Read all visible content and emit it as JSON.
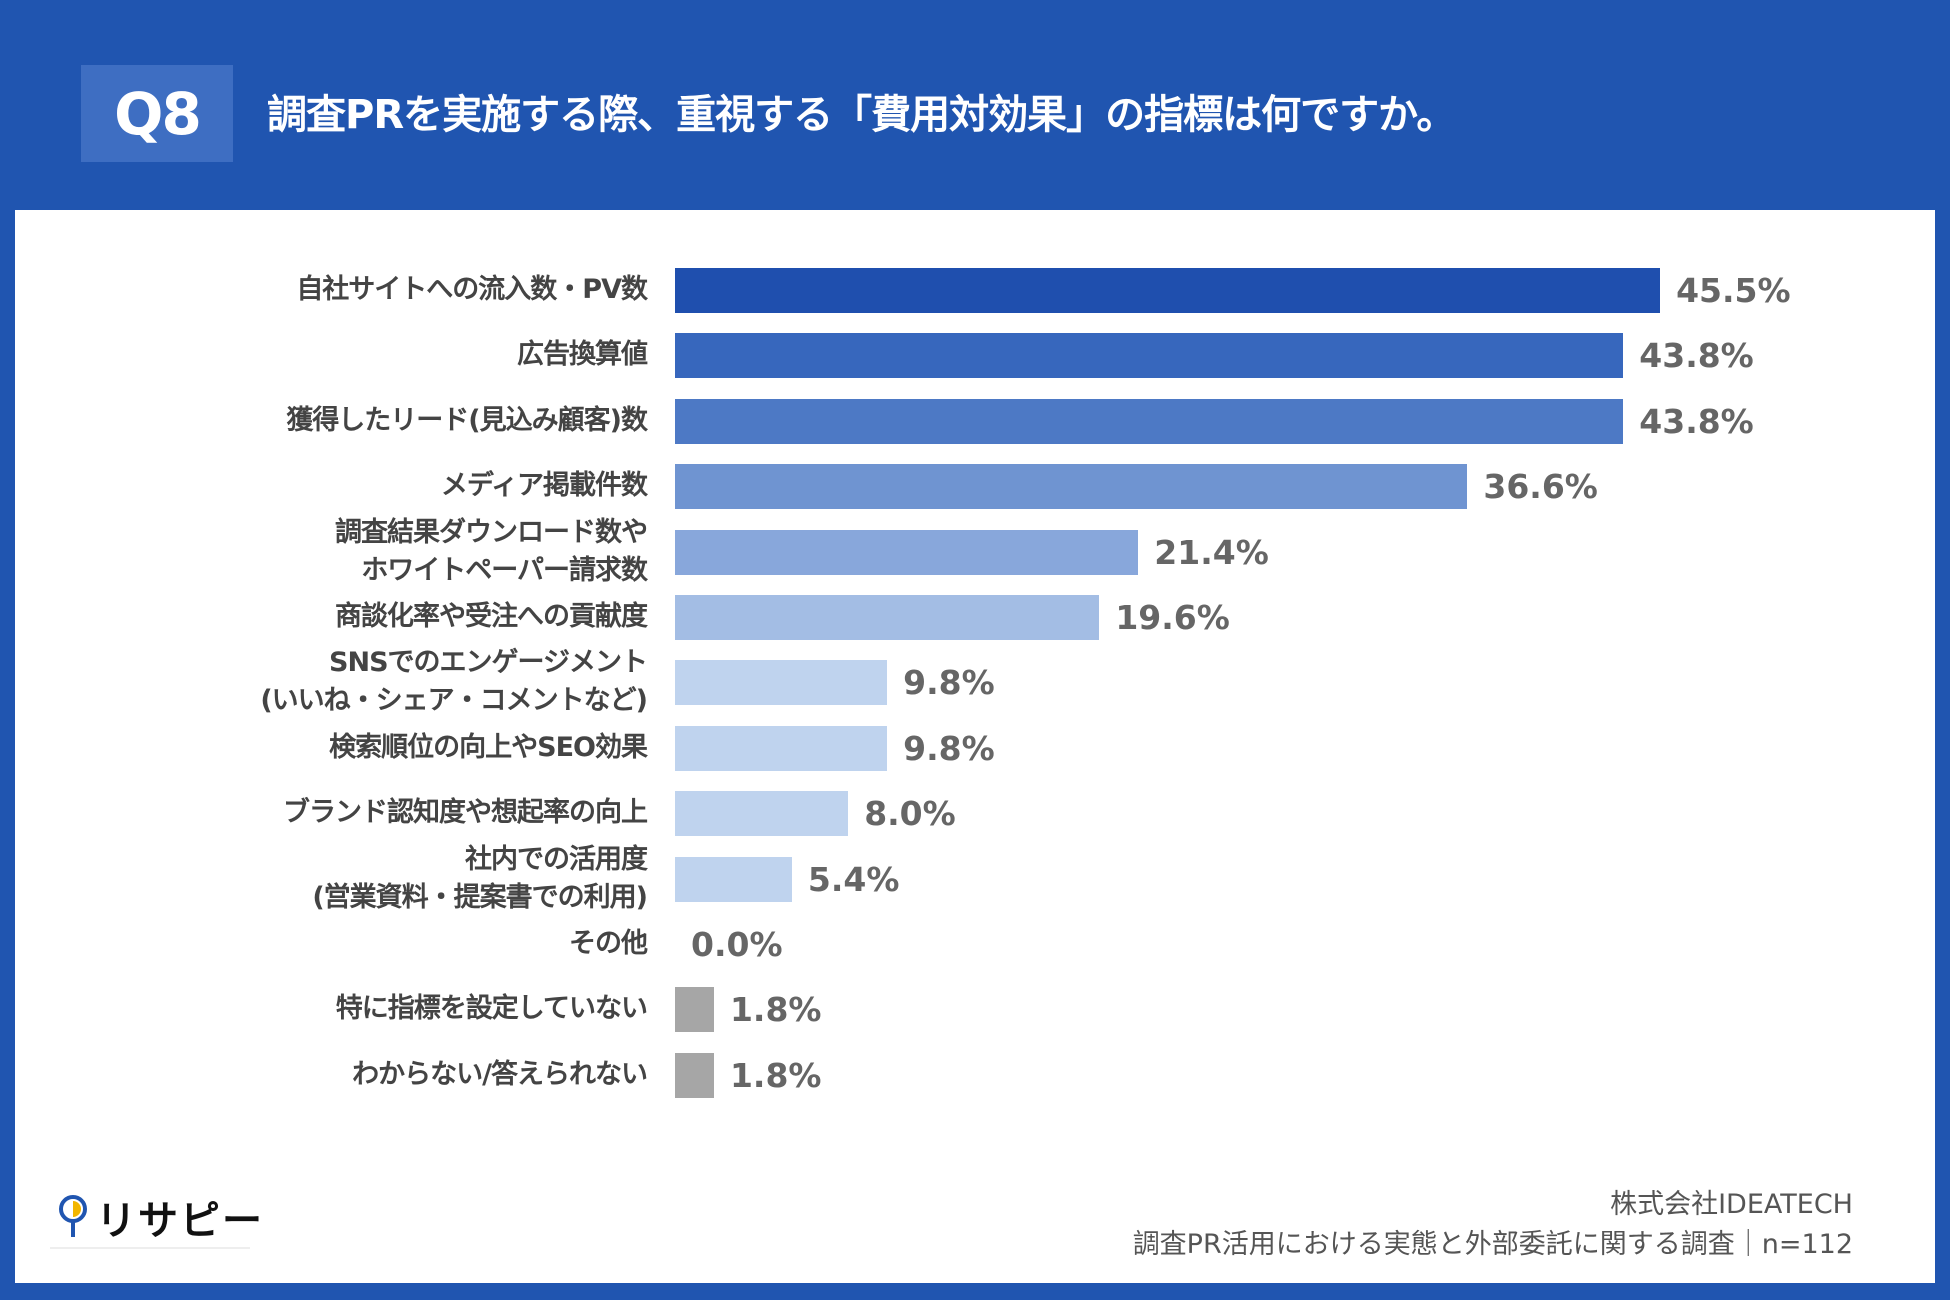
{
  "header": {
    "badge": "Q8",
    "title": "調査PRを実施する際、重視する「費用対効果」の指標は何ですか。"
  },
  "chart_data": {
    "type": "bar",
    "orientation": "horizontal",
    "categories": [
      "自社サイトへの流入数・PV数",
      "広告換算値",
      "獲得したリード(見込み顧客)数",
      "メディア掲載件数",
      "調査結果ダウンロード数や\nホワイトペーパー請求数",
      "商談化率や受注への貢献度",
      "SNSでのエンゲージメント\n(いいね・シェア・コメントなど)",
      "検索順位の向上やSEO効果",
      "ブランド認知度や想起率の向上",
      "社内での活用度\n(営業資料・提案書での利用)",
      "その他",
      "特に指標を設定していない",
      "わからない/答えられない"
    ],
    "values": [
      45.5,
      43.8,
      43.8,
      36.6,
      21.4,
      19.6,
      9.8,
      9.8,
      8.0,
      5.4,
      0.0,
      1.8,
      1.8
    ],
    "value_labels": [
      "45.5%",
      "43.8%",
      "43.8%",
      "36.6%",
      "21.4%",
      "19.6%",
      "9.8%",
      "9.8%",
      "8.0%",
      "5.4%",
      "0.0%",
      "1.8%",
      "1.8%"
    ],
    "colors": [
      "#1f4fae",
      "#3767bd",
      "#4d79c5",
      "#6f94d1",
      "#88a7db",
      "#a3bde4",
      "#bfd3ee",
      "#bfd3ee",
      "#bfd3ee",
      "#bfd3ee",
      "#bfd3ee",
      "#a6a6a6",
      "#a6a6a6"
    ],
    "unit": "%",
    "grid": false
  },
  "footer": {
    "company": "株式会社IDEATECH",
    "survey": "調査PR活用における実態と外部委託に関する調査｜n=112"
  },
  "logo": {
    "text": "リサピー"
  }
}
